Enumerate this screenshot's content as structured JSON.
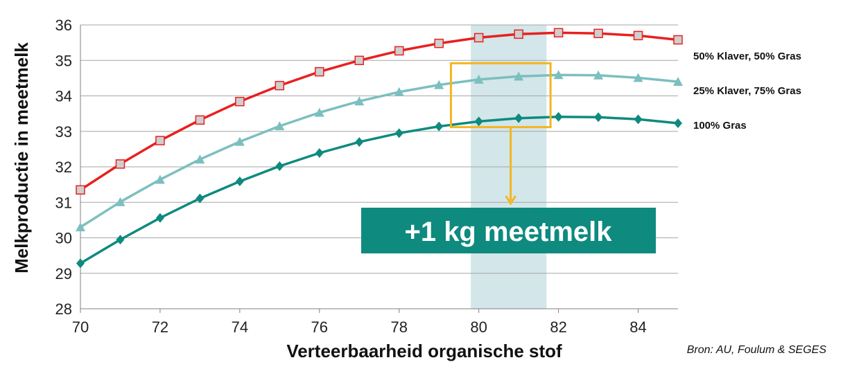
{
  "chart_data": {
    "type": "line",
    "xlabel": "Verteerbaarheid organische stof",
    "ylabel": "Melkproductie in meetmelk",
    "xlim": [
      70,
      85
    ],
    "ylim": [
      28,
      36
    ],
    "xticks": [
      70,
      72,
      74,
      76,
      78,
      80,
      82,
      84
    ],
    "yticks": [
      28,
      29,
      30,
      31,
      32,
      33,
      34,
      35,
      36
    ],
    "grid": "horizontal",
    "x": [
      70,
      71,
      72,
      73,
      74,
      75,
      76,
      77,
      78,
      79,
      80,
      81,
      82,
      83,
      84,
      85
    ],
    "series": [
      {
        "name": "50% Klaver, 50% Gras",
        "color": "#e8201f",
        "marker": "square",
        "marker_fill": "#cfcfcf",
        "values": [
          31.35,
          32.08,
          32.74,
          33.32,
          33.84,
          34.29,
          34.68,
          35.0,
          35.27,
          35.48,
          35.64,
          35.74,
          35.78,
          35.76,
          35.7,
          35.58
        ]
      },
      {
        "name": "25% Klaver, 75% Gras",
        "color": "#7cbfbf",
        "marker": "triangle",
        "marker_fill": "#7cbfbf",
        "values": [
          30.3,
          31.01,
          31.64,
          32.21,
          32.71,
          33.15,
          33.53,
          33.85,
          34.11,
          34.31,
          34.46,
          34.55,
          34.59,
          34.58,
          34.51,
          34.4
        ]
      },
      {
        "name": "100% Gras",
        "color": "#0e8a7e",
        "marker": "diamond",
        "marker_fill": "#0e8a7e",
        "values": [
          29.28,
          29.95,
          30.56,
          31.11,
          31.59,
          32.02,
          32.39,
          32.7,
          32.95,
          33.14,
          33.28,
          33.37,
          33.41,
          33.4,
          33.34,
          33.23
        ]
      }
    ],
    "highlight_band": {
      "x_from": 79.8,
      "x_to": 81.7,
      "color": "#d3e6e9"
    },
    "annotation": {
      "text": "+1 kg meetmelk",
      "box_color": "#0e8a7e",
      "frame_color": "#f3b61f",
      "frame_x": [
        79.3,
        81.8
      ],
      "frame_y": [
        33.12,
        34.92
      ],
      "arrow_x": 80.8
    },
    "source": "Bron: AU, Foulum & SEGES"
  }
}
